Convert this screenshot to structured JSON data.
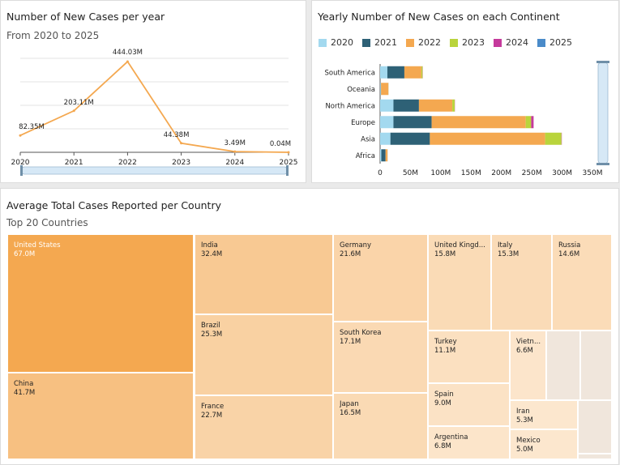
{
  "line_panel": {
    "title": "Number of New Cases per year",
    "subtitle": "From 2020 to 2025"
  },
  "bar_panel": {
    "title": "Yearly Number of New Cases on each Continent"
  },
  "tree_panel": {
    "title": "Average Total Cases Reported per Country",
    "subtitle": "Top 20 Countries"
  },
  "chart_data": [
    {
      "type": "line",
      "title": "Number of New Cases per year",
      "subtitle": "From 2020 to 2025",
      "x": [
        "2020",
        "2021",
        "2022",
        "2023",
        "2024",
        "2025"
      ],
      "values": [
        82.35,
        203.11,
        444.03,
        44.38,
        3.49,
        0.04
      ],
      "value_labels": [
        "82.35M",
        "203.11M",
        "444.03M",
        "44.38M",
        "3.49M",
        "0.04M"
      ],
      "units": "M",
      "ylim": [
        0,
        460
      ],
      "grid": true,
      "color": "#f4a850"
    },
    {
      "type": "bar",
      "orientation": "horizontal",
      "stacked": true,
      "title": "Yearly Number of New Cases on each Continent",
      "categories": [
        "South America",
        "Oceania",
        "North America",
        "Europe",
        "Asia",
        "Africa"
      ],
      "series": [
        {
          "name": "2020",
          "color": "#a3d9ef",
          "values": [
            12,
            1,
            22,
            22,
            17,
            2
          ]
        },
        {
          "name": "2021",
          "color": "#2e6176",
          "values": [
            28,
            0.5,
            42,
            63,
            65,
            7
          ]
        },
        {
          "name": "2022",
          "color": "#f4a850",
          "values": [
            28,
            12,
            55,
            155,
            190,
            3
          ]
        },
        {
          "name": "2023",
          "color": "#b9d43c",
          "values": [
            2,
            0.3,
            4,
            9,
            27,
            0.3
          ]
        },
        {
          "name": "2024",
          "color": "#c53a9c",
          "values": [
            0.3,
            0.1,
            0.3,
            4,
            0.5,
            0.1
          ]
        },
        {
          "name": "2025",
          "color": "#4a8bc9",
          "values": [
            0,
            0,
            0,
            0,
            0,
            0
          ]
        }
      ],
      "x_ticks": [
        "0",
        "50M",
        "100M",
        "150M",
        "200M",
        "250M",
        "300M",
        "350M"
      ],
      "xlim": [
        0,
        350
      ],
      "legend": "top"
    },
    {
      "type": "treemap",
      "title": "Average Total Cases Reported per Country",
      "subtitle": "Top 20 Countries",
      "items": [
        {
          "name": "United States",
          "label": "67.0M",
          "value": 67.0
        },
        {
          "name": "China",
          "label": "41.7M",
          "value": 41.7
        },
        {
          "name": "India",
          "label": "32.4M",
          "value": 32.4
        },
        {
          "name": "Brazil",
          "label": "25.3M",
          "value": 25.3
        },
        {
          "name": "France",
          "label": "22.7M",
          "value": 22.7
        },
        {
          "name": "Germany",
          "label": "21.6M",
          "value": 21.6
        },
        {
          "name": "South Korea",
          "label": "17.1M",
          "value": 17.1
        },
        {
          "name": "Japan",
          "label": "16.5M",
          "value": 16.5
        },
        {
          "name": "United Kingd...",
          "label": "15.8M",
          "value": 15.8
        },
        {
          "name": "Italy",
          "label": "15.3M",
          "value": 15.3
        },
        {
          "name": "Russia",
          "label": "14.6M",
          "value": 14.6
        },
        {
          "name": "Turkey",
          "label": "11.1M",
          "value": 11.1
        },
        {
          "name": "Spain",
          "label": "9.0M",
          "value": 9.0
        },
        {
          "name": "Argentina",
          "label": "6.8M",
          "value": 6.8
        },
        {
          "name": "Vietn...",
          "label": "6.6M",
          "value": 6.6
        },
        {
          "name": "Iran",
          "label": "5.3M",
          "value": 5.3
        },
        {
          "name": "Mexico",
          "label": "5.0M",
          "value": 5.0
        },
        {
          "name": "",
          "label": "",
          "value": null
        },
        {
          "name": "",
          "label": "",
          "value": null
        },
        {
          "name": "",
          "label": "",
          "value": null
        },
        {
          "name": "",
          "label": "",
          "value": null
        },
        {
          "name": "",
          "label": "",
          "value": null
        }
      ]
    }
  ]
}
